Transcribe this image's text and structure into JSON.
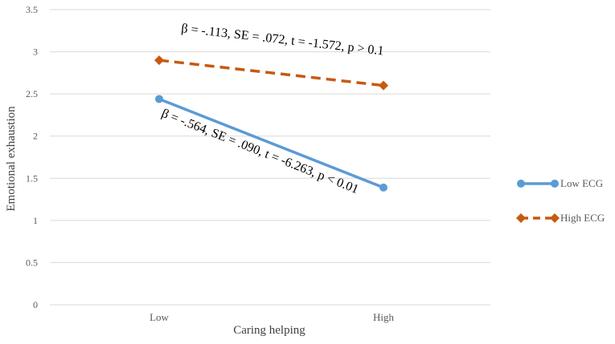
{
  "chart_data": {
    "type": "line",
    "categories": [
      "Low",
      "High"
    ],
    "series": [
      {
        "name": "Low ECG",
        "values": [
          2.44,
          1.39
        ],
        "color": "#5B9BD5",
        "line_style": "solid",
        "marker": "circle"
      },
      {
        "name": "High ECG",
        "values": [
          2.9,
          2.6
        ],
        "color": "#C55A11",
        "line_style": "dashed",
        "marker": "diamond"
      }
    ],
    "title": "",
    "xlabel": "Caring helping",
    "ylabel": "Emotional exhaustion",
    "ylim": [
      0,
      3.5
    ],
    "yticks": [
      "0",
      "0.5",
      "1",
      "1.5",
      "2",
      "2.5",
      "3",
      "3.5"
    ],
    "grid": true,
    "legend": "right",
    "annotations": [
      {
        "text": "β = -.113, SE = .072, t = -1.572, p > 0.1",
        "series": "High ECG"
      },
      {
        "text": "β = -.564, SE = .090, t = -6.263, p < 0.01",
        "series": "Low ECG"
      }
    ]
  }
}
